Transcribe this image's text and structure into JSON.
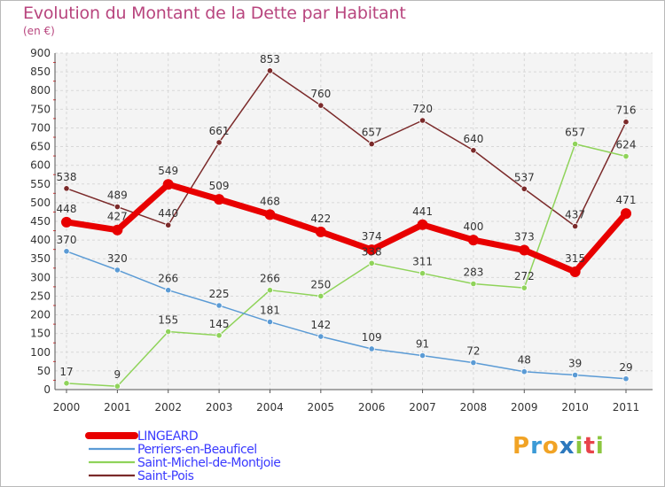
{
  "title": "Evolution du Montant de la Dette par Habitant",
  "subtitle": "(en €)",
  "logo": {
    "text": "Proxiti",
    "letters": [
      "P",
      "r",
      "o",
      "x",
      "i",
      "t",
      "i"
    ],
    "colors": [
      "#f1a325",
      "#3b9ad6",
      "#f1a325",
      "#2c78bd",
      "#8cc63f",
      "#e8434b",
      "#8cc63f"
    ]
  },
  "chart_data": {
    "type": "line",
    "x": [
      "2000",
      "2001",
      "2002",
      "2003",
      "2004",
      "2005",
      "2006",
      "2007",
      "2008",
      "2009",
      "2010",
      "2011"
    ],
    "ylim": [
      0,
      900
    ],
    "yticks": [
      0,
      50,
      100,
      150,
      200,
      250,
      300,
      350,
      400,
      450,
      500,
      550,
      600,
      650,
      700,
      750,
      800,
      850,
      900
    ],
    "grid": true,
    "legend_position": "bottom-left",
    "series": [
      {
        "name": "LINGEARD",
        "color": "#e80000",
        "values": [
          448,
          427,
          549,
          509,
          468,
          422,
          374,
          441,
          400,
          373,
          315,
          471
        ]
      },
      {
        "name": "Perriers-en-Beauficel",
        "color": "#5b9bd5",
        "values": [
          370,
          320,
          266,
          225,
          181,
          142,
          109,
          91,
          72,
          48,
          39,
          29
        ]
      },
      {
        "name": "Saint-Michel-de-Montjoie",
        "color": "#8fd35a",
        "values": [
          17,
          9,
          155,
          145,
          266,
          250,
          338,
          311,
          283,
          272,
          657,
          624
        ]
      },
      {
        "name": "Saint-Pois",
        "color": "#7b2a2a",
        "values": [
          538,
          489,
          440,
          661,
          853,
          760,
          657,
          720,
          640,
          537,
          437,
          716
        ]
      }
    ]
  }
}
